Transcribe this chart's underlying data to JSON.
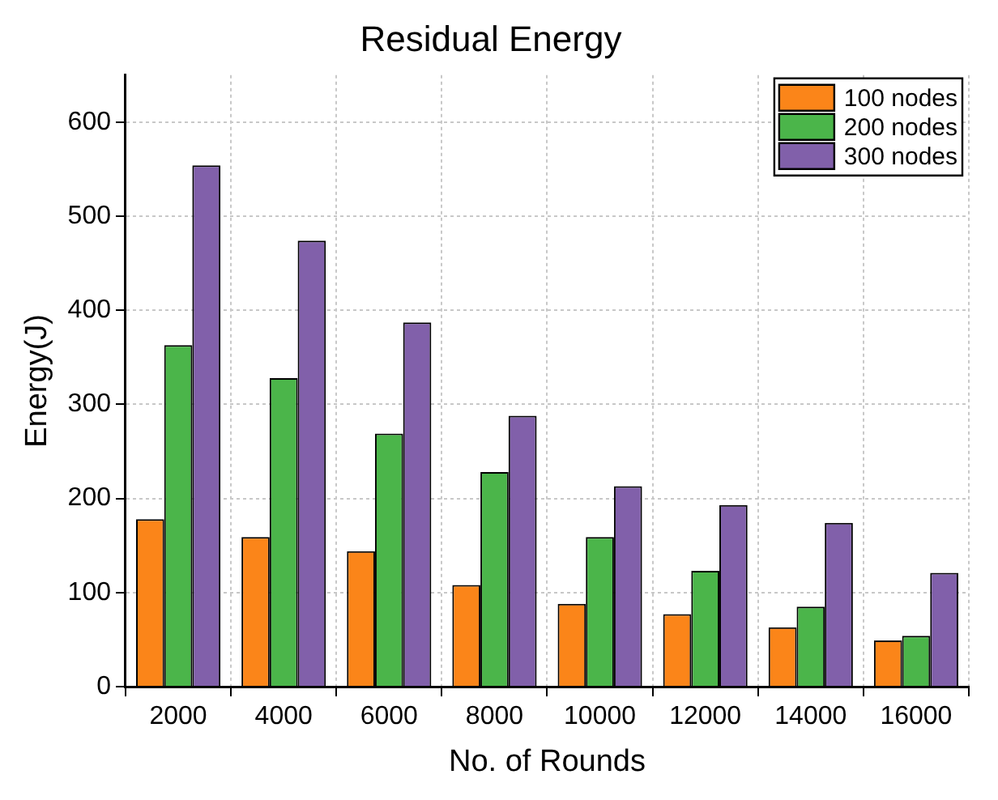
{
  "chart_data": {
    "type": "bar",
    "title": "Residual Energy",
    "xlabel": "No. of Rounds",
    "ylabel": "Energy(J)",
    "categories": [
      "2000",
      "4000",
      "6000",
      "8000",
      "10000",
      "12000",
      "14000",
      "16000"
    ],
    "series": [
      {
        "name": "100 nodes",
        "color": "#fb8519",
        "values": [
          178,
          159,
          144,
          108,
          88,
          77,
          63,
          49
        ]
      },
      {
        "name": "200 nodes",
        "color": "#4bb54a",
        "values": [
          363,
          328,
          269,
          228,
          159,
          123,
          85,
          54
        ]
      },
      {
        "name": "300 nodes",
        "color": "#8160aa",
        "values": [
          554,
          474,
          387,
          288,
          213,
          193,
          174,
          121
        ]
      }
    ],
    "ylim": [
      0,
      650
    ],
    "yticks": [
      0,
      100,
      200,
      300,
      400,
      500,
      600
    ],
    "grid": true,
    "legend": "top right"
  }
}
